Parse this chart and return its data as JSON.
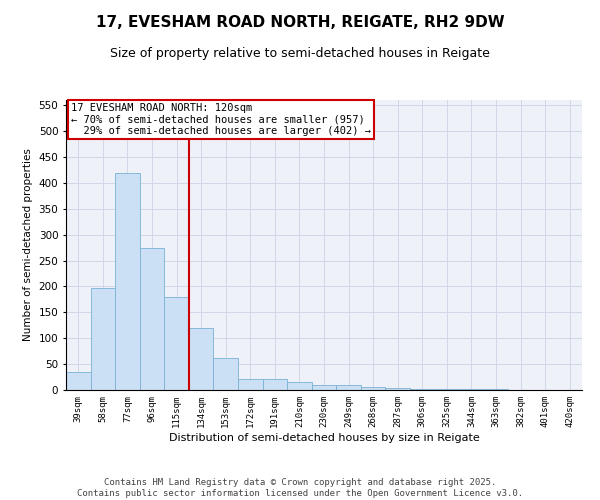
{
  "title": "17, EVESHAM ROAD NORTH, REIGATE, RH2 9DW",
  "subtitle": "Size of property relative to semi-detached houses in Reigate",
  "xlabel": "Distribution of semi-detached houses by size in Reigate",
  "ylabel": "Number of semi-detached properties",
  "categories": [
    "39sqm",
    "58sqm",
    "77sqm",
    "96sqm",
    "115sqm",
    "134sqm",
    "153sqm",
    "172sqm",
    "191sqm",
    "210sqm",
    "230sqm",
    "249sqm",
    "268sqm",
    "287sqm",
    "306sqm",
    "325sqm",
    "344sqm",
    "363sqm",
    "382sqm",
    "401sqm",
    "420sqm"
  ],
  "values": [
    35,
    197,
    420,
    274,
    180,
    120,
    62,
    22,
    21,
    16,
    9,
    9,
    5,
    4,
    2,
    2,
    1,
    1,
    0,
    0,
    0
  ],
  "bar_color": "#cce0f5",
  "bar_edge_color": "#7ab0d4",
  "property_line_x": 4.5,
  "property_label": "17 EVESHAM ROAD NORTH: 120sqm",
  "smaller_pct": "70%",
  "smaller_n": 957,
  "larger_pct": "29%",
  "larger_n": 402,
  "annotation_box_color": "#cc0000",
  "grid_color": "#d0d8e8",
  "background_color": "#eef2f8",
  "ylim": [
    0,
    560
  ],
  "yticks": [
    0,
    50,
    100,
    150,
    200,
    250,
    300,
    350,
    400,
    450,
    500,
    550
  ],
  "title_fontsize": 11,
  "subtitle_fontsize": 9,
  "annot_fontsize": 7.5,
  "xlabel_fontsize": 8,
  "ylabel_fontsize": 7.5,
  "xtick_fontsize": 6.5,
  "ytick_fontsize": 7.5,
  "footer_text": "Contains HM Land Registry data © Crown copyright and database right 2025.\nContains public sector information licensed under the Open Government Licence v3.0.",
  "footer_fontsize": 6.5
}
